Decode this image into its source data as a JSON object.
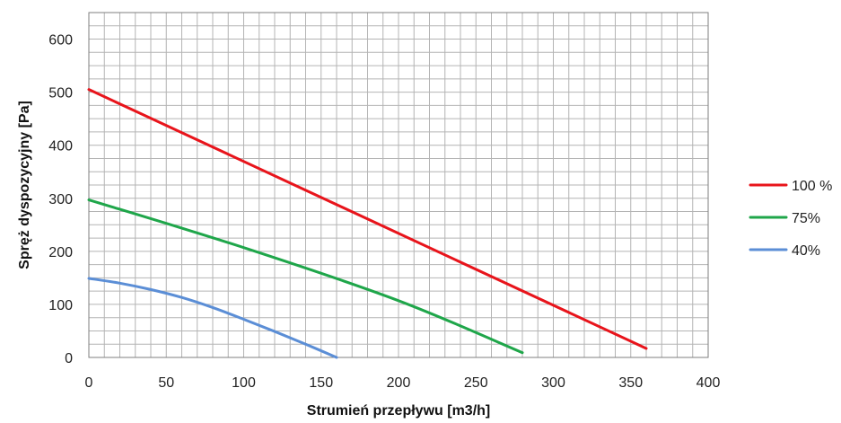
{
  "chart_data": {
    "type": "line",
    "title": "",
    "xlabel": "Strumień przepływu [m3/h]",
    "ylabel": "Spręż dyspozycyjny [Pa]",
    "xlim": [
      0,
      400
    ],
    "ylim": [
      0,
      650
    ],
    "x_ticks": [
      0,
      50,
      100,
      150,
      200,
      250,
      300,
      350,
      400
    ],
    "y_ticks": [
      0,
      100,
      200,
      300,
      400,
      500,
      600
    ],
    "x_minor_step": 10,
    "y_minor_step": 25,
    "grid": true,
    "legend_position": "right",
    "series": [
      {
        "name": "100 %",
        "color": "#e8141b",
        "points": [
          [
            0,
            505
          ],
          [
            360,
            17
          ]
        ]
      },
      {
        "name": "75%",
        "color": "#1fa64a",
        "points": [
          [
            0,
            297
          ],
          [
            100,
            207
          ],
          [
            200,
            107
          ],
          [
            280,
            9
          ]
        ]
      },
      {
        "name": "40%",
        "color": "#5b8ed6",
        "points": [
          [
            0,
            149
          ],
          [
            20,
            140
          ],
          [
            40,
            128
          ],
          [
            60,
            113
          ],
          [
            80,
            94
          ],
          [
            100,
            72
          ],
          [
            120,
            49
          ],
          [
            140,
            25
          ],
          [
            160,
            0
          ]
        ]
      }
    ]
  }
}
